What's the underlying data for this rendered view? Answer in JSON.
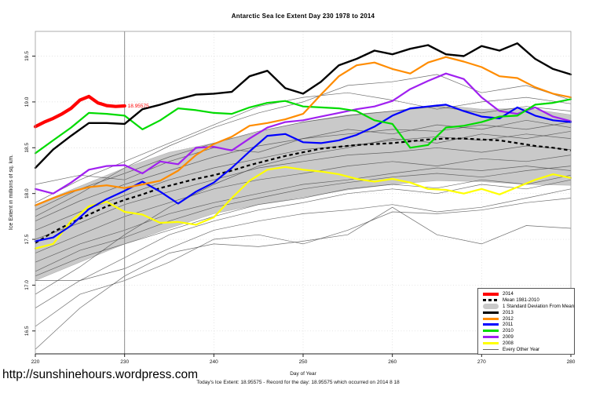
{
  "page": {
    "title": "Antarctic Sea Ice Extent Day 230 1978 to 2014",
    "x_axis_label": "Day of Year",
    "y_axis_label": "Ice Extent in millions of sq. km.",
    "footnote": "Today's Ice Extent: 18.95575  - Record for the day: 18.95575 which occurred on 2014 8 18",
    "site_url": "http://sunshinehours.wordpress.com"
  },
  "colors": {
    "red_2014": "#FF0000",
    "black_2013": "#000000",
    "orange_2012": "#FF8C00",
    "blue_2011": "#0000FF",
    "green_2010": "#00DB00",
    "purple_2009": "#A020F0",
    "yellow_2008": "#FFFF00",
    "band_gray": "#C9C9C9",
    "thin_gray": "#4A4A4A",
    "grid_gray": "#D8D8D8",
    "vline_gray": "#8C8C8C"
  },
  "legend": {
    "items": [
      {
        "label": "2014",
        "swatch": "thick",
        "color": "#FF0000"
      },
      {
        "label": "Mean 1981-2010",
        "swatch": "dash",
        "color": "#000000"
      },
      {
        "label": "1 Standard Deviation From Mean",
        "swatch": "band",
        "color": "#C9C9C9"
      },
      {
        "label": "2013",
        "swatch": "line",
        "color": "#000000"
      },
      {
        "label": "2012",
        "swatch": "line",
        "color": "#FF8C00"
      },
      {
        "label": "2011",
        "swatch": "line",
        "color": "#0000FF"
      },
      {
        "label": "2010",
        "swatch": "line",
        "color": "#00DB00"
      },
      {
        "label": "2009",
        "swatch": "line",
        "color": "#A020F0"
      },
      {
        "label": "2008",
        "swatch": "line",
        "color": "#FFFF00"
      },
      {
        "label": "Every Other Year",
        "swatch": "thin",
        "color": "#666666"
      }
    ]
  },
  "chart_data": {
    "type": "line",
    "title": "Antarctic Sea Ice Extent Day 230 1978 to 2014",
    "xlabel": "Day of Year",
    "ylabel": "Ice Extent in millions of sq. km.",
    "xlim": [
      220,
      280
    ],
    "ylim": [
      16.25,
      19.77
    ],
    "x_ticks": [
      220,
      230,
      240,
      250,
      260,
      270,
      280
    ],
    "y_ticks": [
      16.5,
      17.0,
      17.5,
      18.0,
      18.5,
      19.0,
      19.5
    ],
    "grid": true,
    "legend_position": "bottom-right",
    "vline_day": 230,
    "annotation": {
      "text": "18.95575",
      "day": 230,
      "value": 18.956,
      "color": "#FF0000"
    },
    "band": {
      "name": "1 Standard Deviation From Mean",
      "color": "#C9C9C9",
      "x_start": 220,
      "x_step": 5,
      "upper": [
        17.88,
        18.08,
        18.28,
        18.45,
        18.55,
        18.67,
        18.78,
        18.86,
        18.9,
        18.97,
        18.92,
        18.93,
        18.86
      ],
      "lower": [
        17.05,
        17.25,
        17.45,
        17.62,
        17.78,
        17.88,
        17.96,
        18.04,
        18.1,
        18.14,
        18.13,
        18.1,
        18.09
      ]
    },
    "mean": {
      "name": "Mean 1981-2010",
      "color": "#000000",
      "style": "dashed",
      "x_start": 220,
      "x_step": 2,
      "values": [
        17.46,
        17.58,
        17.68,
        17.77,
        17.86,
        17.93,
        17.99,
        18.06,
        18.11,
        18.16,
        18.2,
        18.25,
        18.31,
        18.36,
        18.41,
        18.45,
        18.49,
        18.51,
        18.53,
        18.54,
        18.55,
        18.57,
        18.59,
        18.6,
        18.6,
        18.59,
        18.58,
        18.55,
        18.52,
        18.5,
        18.47
      ]
    },
    "series": [
      {
        "name": "2008",
        "color": "#FFFF00",
        "width": 2.2,
        "x_start": 220,
        "x_step": 2,
        "values": [
          17.4,
          17.45,
          17.7,
          17.86,
          17.91,
          17.8,
          17.77,
          17.68,
          17.69,
          17.66,
          17.74,
          17.95,
          18.14,
          18.26,
          18.29,
          18.26,
          18.24,
          18.21,
          18.16,
          18.13,
          18.16,
          18.12,
          18.05,
          18.04,
          18.0,
          18.05,
          17.99,
          18.07,
          18.15,
          18.21,
          18.17
        ]
      },
      {
        "name": "2009",
        "color": "#A020F0",
        "width": 2.2,
        "x_start": 220,
        "x_step": 2,
        "values": [
          18.05,
          18.0,
          18.12,
          18.26,
          18.3,
          18.31,
          18.22,
          18.35,
          18.32,
          18.5,
          18.51,
          18.47,
          18.6,
          18.72,
          18.78,
          18.8,
          18.84,
          18.88,
          18.92,
          18.95,
          19.01,
          19.14,
          19.23,
          19.31,
          19.25,
          19.05,
          18.9,
          18.87,
          18.94,
          18.84,
          18.79
        ]
      },
      {
        "name": "2011",
        "color": "#0000FF",
        "width": 2.2,
        "x_start": 220,
        "x_step": 2,
        "values": [
          17.48,
          17.52,
          17.65,
          17.83,
          17.94,
          18.03,
          18.13,
          18.02,
          17.89,
          18.02,
          18.12,
          18.28,
          18.46,
          18.63,
          18.65,
          18.56,
          18.55,
          18.58,
          18.64,
          18.73,
          18.85,
          18.93,
          18.95,
          18.97,
          18.9,
          18.84,
          18.82,
          18.94,
          18.85,
          18.8,
          18.78
        ]
      },
      {
        "name": "2010",
        "color": "#00DB00",
        "width": 2.2,
        "x_start": 220,
        "x_step": 2,
        "values": [
          18.44,
          18.58,
          18.72,
          18.88,
          18.87,
          18.85,
          18.7,
          18.8,
          18.93,
          18.91,
          18.88,
          18.87,
          18.94,
          18.99,
          19.01,
          18.95,
          18.94,
          18.93,
          18.9,
          18.8,
          18.76,
          18.5,
          18.53,
          18.72,
          18.74,
          18.78,
          18.84,
          18.85,
          18.97,
          18.99,
          19.03
        ]
      },
      {
        "name": "2012",
        "color": "#FF8C00",
        "width": 2.2,
        "x_start": 220,
        "x_step": 2,
        "values": [
          17.87,
          17.95,
          18.02,
          18.07,
          18.09,
          18.06,
          18.1,
          18.14,
          18.25,
          18.42,
          18.54,
          18.62,
          18.74,
          18.77,
          18.81,
          18.87,
          19.08,
          19.28,
          19.4,
          19.43,
          19.36,
          19.31,
          19.43,
          19.49,
          19.44,
          19.38,
          19.28,
          19.26,
          19.16,
          19.09,
          19.05
        ]
      },
      {
        "name": "2013",
        "color": "#000000",
        "width": 2.4,
        "x_start": 220,
        "x_step": 2,
        "values": [
          18.28,
          18.48,
          18.63,
          18.77,
          18.77,
          18.76,
          18.92,
          18.97,
          19.03,
          19.08,
          19.09,
          19.11,
          19.28,
          19.34,
          19.15,
          19.09,
          19.22,
          19.4,
          19.47,
          19.56,
          19.52,
          19.58,
          19.62,
          19.52,
          19.5,
          19.61,
          19.56,
          19.64,
          19.47,
          19.36,
          19.3
        ]
      },
      {
        "name": "2014",
        "color": "#FF0000",
        "width": 4.2,
        "x_start": 220,
        "x_step": 1,
        "values": [
          18.73,
          18.78,
          18.82,
          18.87,
          18.93,
          19.02,
          19.06,
          18.99,
          18.96,
          18.95,
          18.956
        ]
      }
    ],
    "other_years": {
      "name": "Every Other Year",
      "color": "#4A4A4A",
      "x_start": 220,
      "x_step": 5,
      "lines": [
        [
          16.3,
          16.75,
          17.1,
          17.35,
          17.45,
          17.42,
          17.48,
          17.55,
          17.85,
          17.55,
          17.45,
          17.65,
          17.62
        ],
        [
          16.55,
          16.9,
          17.05,
          17.25,
          17.5,
          17.55,
          17.45,
          17.6,
          17.8,
          17.78,
          17.82,
          17.9,
          17.95
        ],
        [
          16.75,
          17.05,
          17.3,
          17.55,
          17.7,
          17.82,
          17.9,
          18.0,
          18.05,
          18.0,
          18.1,
          18.05,
          18.15
        ],
        [
          16.9,
          17.2,
          17.55,
          17.85,
          18.1,
          18.3,
          18.42,
          18.5,
          18.6,
          18.55,
          18.65,
          18.6,
          18.68
        ],
        [
          17.05,
          17.05,
          17.18,
          17.4,
          17.6,
          17.7,
          17.78,
          17.82,
          17.88,
          17.8,
          17.85,
          17.95,
          18.05
        ],
        [
          17.1,
          17.3,
          17.45,
          17.6,
          17.75,
          17.88,
          17.95,
          18.05,
          18.1,
          18.06,
          18.15,
          18.1,
          18.2
        ],
        [
          17.15,
          17.38,
          17.52,
          17.7,
          17.85,
          17.95,
          18.05,
          18.12,
          18.18,
          18.22,
          18.18,
          18.25,
          18.3
        ],
        [
          17.25,
          17.45,
          17.6,
          17.78,
          17.9,
          18.0,
          18.1,
          18.15,
          18.22,
          18.28,
          18.25,
          18.3,
          18.25
        ],
        [
          17.35,
          17.55,
          17.75,
          17.9,
          18.05,
          18.15,
          18.22,
          18.3,
          18.35,
          18.3,
          18.38,
          18.35,
          18.42
        ],
        [
          17.5,
          17.68,
          17.88,
          18.02,
          18.15,
          18.28,
          18.35,
          18.42,
          18.45,
          18.5,
          18.45,
          18.52,
          18.48
        ],
        [
          17.6,
          17.8,
          17.98,
          18.15,
          18.28,
          18.38,
          18.48,
          18.52,
          18.58,
          18.62,
          18.58,
          18.65,
          18.6
        ],
        [
          17.7,
          17.92,
          18.1,
          18.25,
          18.4,
          18.52,
          18.6,
          18.65,
          18.7,
          18.68,
          18.75,
          18.7,
          18.78
        ],
        [
          17.82,
          18.05,
          18.22,
          18.4,
          18.55,
          18.68,
          18.78,
          18.85,
          18.9,
          18.95,
          18.88,
          18.95,
          18.9
        ],
        [
          17.9,
          18.15,
          18.35,
          18.55,
          18.75,
          18.95,
          19.05,
          19.1,
          19.02,
          18.92,
          19.0,
          19.05,
          18.98
        ],
        [
          17.75,
          18.0,
          18.28,
          18.52,
          18.72,
          18.88,
          19.0,
          19.18,
          19.22,
          19.3,
          19.1,
          19.18,
          19.02
        ],
        [
          18.1,
          18.2,
          18.15,
          18.35,
          18.5,
          18.45,
          18.6,
          18.7,
          18.65,
          18.75,
          18.7,
          18.8,
          18.72
        ]
      ]
    }
  }
}
